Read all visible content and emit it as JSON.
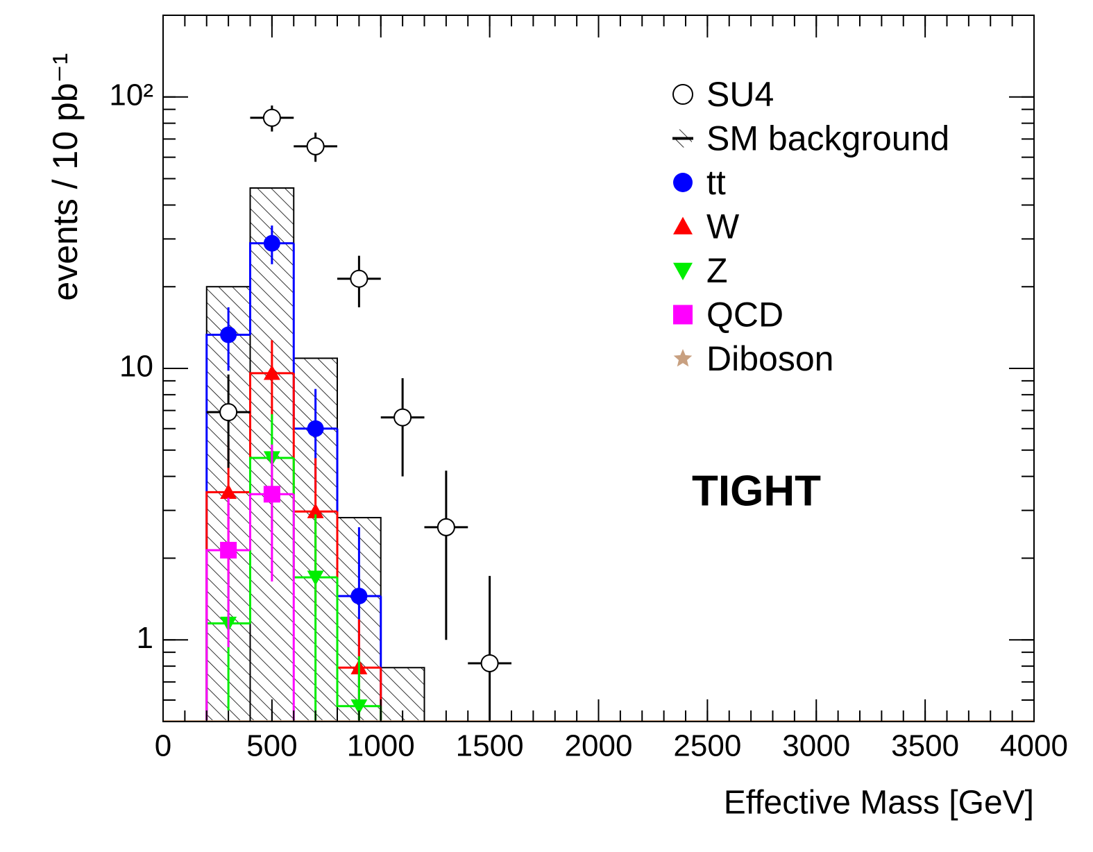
{
  "chart_data": {
    "type": "histogram",
    "x_label": "Effective Mass [GeV]",
    "y_label": "events / 10 pb⁻¹",
    "annotation": "TIGHT",
    "log_y": true,
    "xlim": [
      0,
      4000
    ],
    "ylim": [
      0.5,
      200
    ],
    "xticks": [
      0,
      500,
      1000,
      1500,
      2000,
      2500,
      3000,
      3500,
      4000
    ],
    "yticks": [
      1,
      10,
      {
        "value": 100,
        "label": "10²"
      }
    ],
    "bins": [
      200,
      400,
      600,
      800,
      1000,
      1200
    ],
    "background": {
      "name": "SM background",
      "color": "#000000",
      "values": [
        20.0,
        46.2,
        10.9,
        2.82,
        0.79
      ]
    },
    "series": [
      {
        "name": "tt",
        "color": "#0000ff",
        "marker": "circle",
        "values": [
          13.3,
          28.9,
          6.0,
          1.45,
          null
        ],
        "errors": [
          3.5,
          4.7,
          2.4,
          1.15,
          null
        ]
      },
      {
        "name": "W",
        "color": "#ff0000",
        "marker": "triangle-up",
        "values": [
          3.5,
          9.6,
          2.97,
          0.79,
          null
        ],
        "errors": [
          1.9,
          3.1,
          1.7,
          0.4,
          null
        ]
      },
      {
        "name": "Z",
        "color": "#00ee00",
        "marker": "triangle-down",
        "values": [
          1.15,
          4.68,
          1.7,
          0.57,
          null
        ],
        "errors": [
          0.6,
          2.1,
          1.2,
          0.3,
          null
        ]
      },
      {
        "name": "QCD",
        "color": "#ff00ff",
        "marker": "square",
        "values": [
          2.14,
          3.44,
          null,
          null,
          null
        ],
        "errors": [
          1.2,
          1.8,
          null,
          null,
          null
        ]
      },
      {
        "name": "Diboson",
        "color": "#c8a080",
        "marker": "star",
        "values": [
          null,
          null,
          null,
          null,
          null
        ],
        "errors": [
          null,
          null,
          null,
          null,
          null
        ]
      }
    ],
    "signal": {
      "name": "SU4",
      "color": "#000000",
      "marker": "open-circle",
      "bins": [
        200,
        400,
        600,
        800,
        1000,
        1200,
        1400,
        1600
      ],
      "values": [
        6.9,
        83.8,
        65.8,
        21.4,
        6.6,
        2.6,
        0.82
      ],
      "errors": [
        2.6,
        9.2,
        8.1,
        4.6,
        2.6,
        1.6,
        0.9
      ]
    }
  }
}
